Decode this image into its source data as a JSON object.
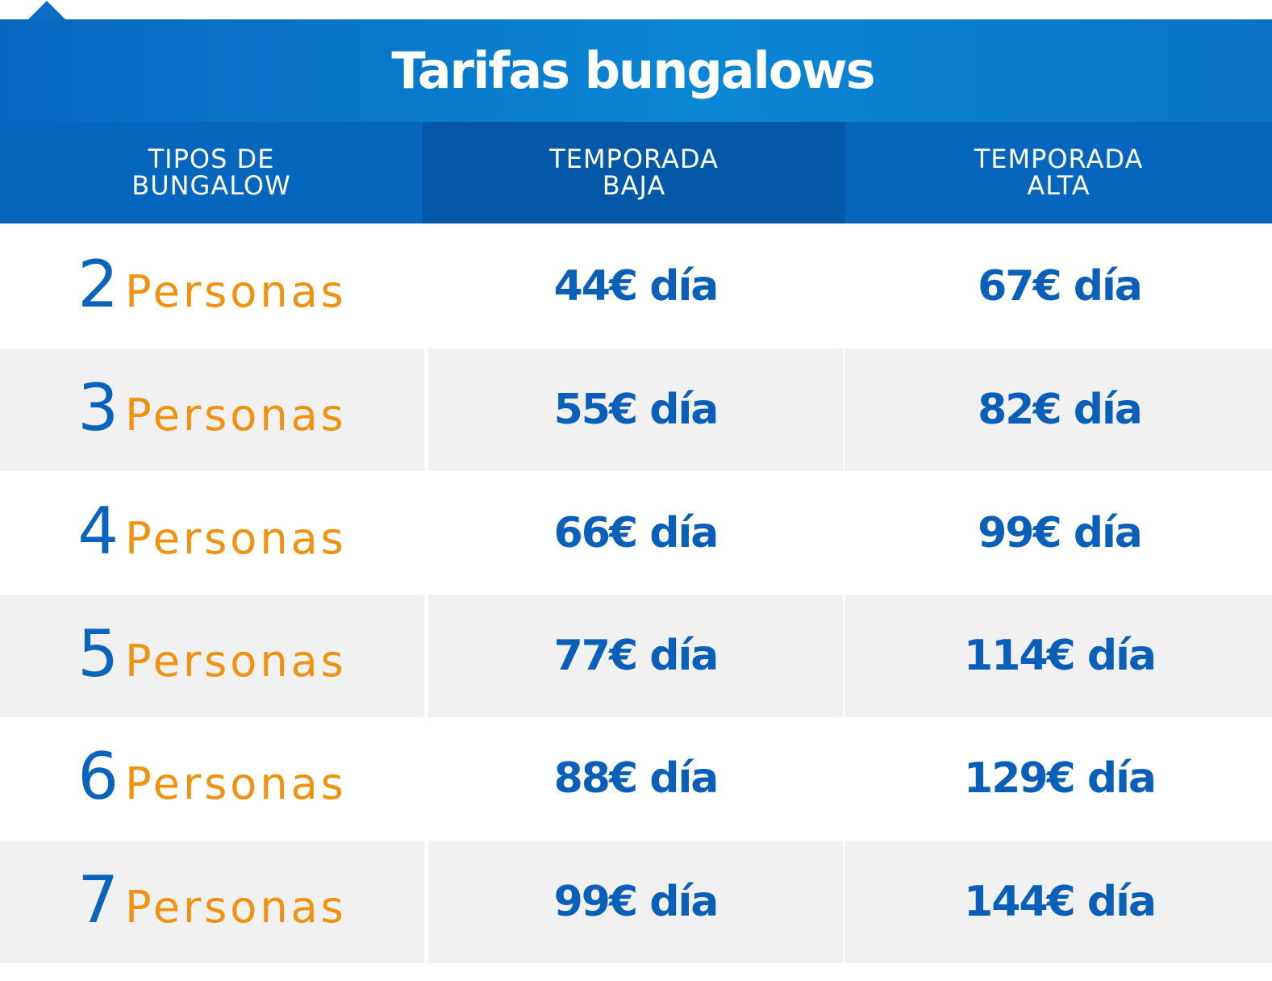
{
  "title": "Tarifas bungalows",
  "headers": {
    "col1_line1": "TIPOS DE",
    "col1_line2": "BUNGALOW",
    "col2_line1": "TEMPORADA",
    "col2_line2": "BAJA",
    "col3_line1": "TEMPORADA",
    "col3_line2": "ALTA"
  },
  "rows": [
    {
      "persons": "2",
      "label": "Personas",
      "low": "44€ día",
      "high": "67€ día"
    },
    {
      "persons": "3",
      "label": "Personas",
      "low": "55€ día",
      "high": "82€ día"
    },
    {
      "persons": "4",
      "label": "Personas",
      "low": "66€ día",
      "high": "99€ día"
    },
    {
      "persons": "5",
      "label": "Personas",
      "low": "77€ día",
      "high": "114€ día"
    },
    {
      "persons": "6",
      "label": "Personas",
      "low": "88€ día",
      "high": "129€ día"
    },
    {
      "persons": "7",
      "label": "Personas",
      "low": "99€ día",
      "high": "144€ día"
    }
  ],
  "colors": {
    "header_blue": "#0665bd",
    "header_blue_dark": "#0558a8",
    "number_blue": "#0a63bd",
    "persons_orange": "#f0920f",
    "price_blue": "#0a5fb8",
    "row_alt": "#f1f1f1"
  }
}
